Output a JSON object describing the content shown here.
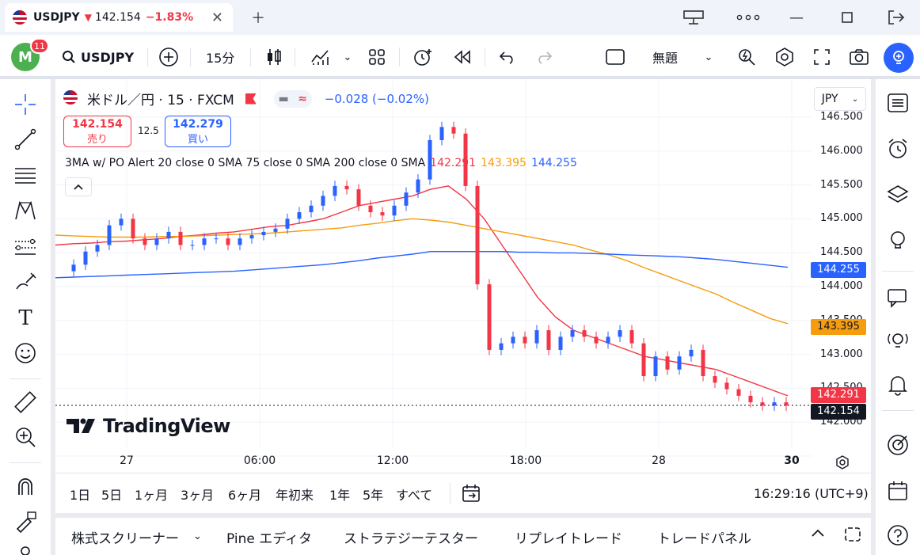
{
  "window": {
    "tab_symbol": "USDJPY",
    "tab_price": "142.154",
    "tab_change": "−1.83%",
    "tab_direction_glyph": "▼"
  },
  "toolbar": {
    "avatar_letter": "M",
    "notification_count": "11",
    "symbol_search": "USDJPY",
    "interval": "15分",
    "layout_name": "無題"
  },
  "chart": {
    "title": "米ドル／円 · 15 · FXCM",
    "change": "−0.028 (−0.02%)",
    "sell_price": "142.154",
    "sell_label": "売り",
    "spread": "12.5",
    "buy_price": "142.279",
    "buy_label": "買い",
    "indicator": "3MA w/ PO Alert 20 close 0 SMA 75 close 0 SMA 200 close 0 SMA",
    "ma20_value": "142.291",
    "ma75_value": "143.395",
    "ma200_value": "144.255",
    "currency": "JPY",
    "watermark": "TradingView",
    "last_price_label": "142.154",
    "price_ticks": [
      "146.500",
      "146.000",
      "145.500",
      "145.000",
      "144.500",
      "144.000",
      "143.500",
      "143.000",
      "142.500",
      "142.000"
    ],
    "time_ticks": [
      "27",
      "06:00",
      "12:00",
      "18:00",
      "28",
      "30"
    ],
    "ranges": [
      "1日",
      "5日",
      "1ヶ月",
      "3ヶ月",
      "6ヶ月",
      "年初来",
      "1年",
      "5年",
      "すべて"
    ],
    "clock": "16:29:16 (UTC+9)"
  },
  "bottom_panel": {
    "tabs": [
      "株式スクリーナー",
      "Pine エディタ",
      "ストラテジーテスター",
      "リプレイトレード",
      "トレードパネル"
    ]
  },
  "colors": {
    "up": "#2962ff",
    "down": "#f23645",
    "ma20": "#f23645",
    "ma75": "#f59d0e",
    "ma200": "#2962ff",
    "accent": "#2962ff"
  },
  "chart_data": {
    "type": "candlestick",
    "y_axis_range": [
      141.9,
      146.55
    ],
    "ma_lines": [
      {
        "name": "SMA 20",
        "color": "#f23645",
        "values": [
          144.6,
          144.62,
          144.63,
          144.65,
          144.66,
          144.68,
          144.7,
          144.73,
          144.75,
          144.78,
          144.8,
          144.84,
          144.88,
          144.9,
          144.95,
          145,
          145.1,
          145.2,
          145.25,
          145.3,
          145.35,
          145.45,
          145.5,
          145.3,
          145,
          144.6,
          144.2,
          143.8,
          143.5,
          143.3,
          143.2,
          143.1,
          143,
          142.9,
          142.85,
          142.8,
          142.75,
          142.7,
          142.6,
          142.5,
          142.4,
          142.3
        ]
      },
      {
        "name": "SMA 75",
        "color": "#f59d0e",
        "values": [
          144.75,
          144.74,
          144.73,
          144.72,
          144.72,
          144.72,
          144.73,
          144.73,
          144.74,
          144.75,
          144.76,
          144.77,
          144.78,
          144.8,
          144.82,
          144.84,
          144.86,
          144.9,
          144.93,
          144.97,
          145,
          144.98,
          144.95,
          144.9,
          144.85,
          144.8,
          144.75,
          144.7,
          144.65,
          144.6,
          144.52,
          144.45,
          144.36,
          144.25,
          144.15,
          144.05,
          143.95,
          143.85,
          143.72,
          143.6,
          143.48,
          143.4
        ]
      },
      {
        "name": "SMA 200",
        "color": "#2962ff",
        "values": [
          144.1,
          144.11,
          144.12,
          144.13,
          144.14,
          144.15,
          144.16,
          144.17,
          144.18,
          144.19,
          144.2,
          144.22,
          144.24,
          144.26,
          144.28,
          144.3,
          144.33,
          144.36,
          144.4,
          144.43,
          144.46,
          144.5,
          144.5,
          144.5,
          144.5,
          144.5,
          144.49,
          144.49,
          144.48,
          144.48,
          144.47,
          144.46,
          144.45,
          144.44,
          144.43,
          144.42,
          144.4,
          144.38,
          144.35,
          144.32,
          144.29,
          144.26
        ]
      }
    ],
    "last_price": 142.154
  }
}
